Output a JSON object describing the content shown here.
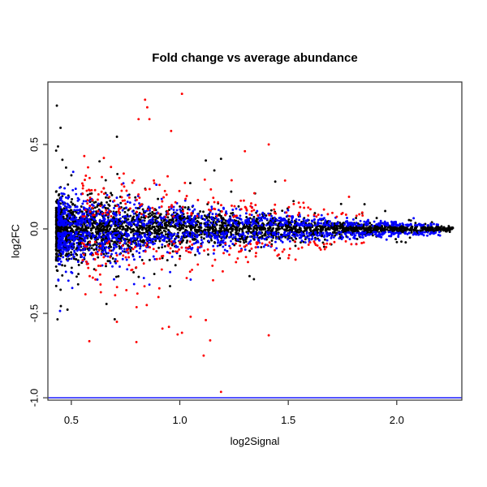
{
  "chart_data": {
    "type": "scatter",
    "title": "Fold change vs average abundance",
    "xlabel": "log2Signal",
    "ylabel": "log2FC",
    "x_ticks": [
      0.5,
      1.0,
      1.5,
      2.0
    ],
    "x_tick_labels": [
      "0.5",
      "1.0",
      "1.5",
      "2.0"
    ],
    "y_ticks": [
      -1.0,
      -0.5,
      0.0,
      0.5
    ],
    "y_tick_labels": [
      "-1.0",
      "-0.5",
      "0.0",
      "0.5"
    ],
    "xlim": [
      0.392,
      2.3
    ],
    "ylim": [
      -1.014,
      0.87
    ],
    "grid": false,
    "legend": null,
    "background_color": "#ffffff",
    "axis_color": "#2f2f2f",
    "hline": {
      "y": -1.0,
      "color": "#0000ff"
    },
    "seed": 1337,
    "series": [
      {
        "name": "black-points",
        "color": "#000000",
        "count": 2800,
        "x_min": 0.43,
        "x_max": 2.26,
        "x_pow": 1.8,
        "offset": 0.0,
        "sd_scale": 0.075,
        "sd_pow": 1.35,
        "sd_min": 0.006,
        "tail_frac": 0.07,
        "tail_mult": 3.0,
        "outliers": [
          [
            0.7,
            -0.535
          ],
          [
            1.12,
            0.405
          ],
          [
            1.19,
            0.415
          ],
          [
            1.44,
            0.28
          ],
          [
            0.63,
            0.4
          ],
          [
            2.24,
            -0.005
          ]
        ]
      },
      {
        "name": "blue-points",
        "color": "#0000ff",
        "count": 1500,
        "x_min": 0.44,
        "x_max": 2.2,
        "x_pow": 1.8,
        "offset": 0.018,
        "sd_scale": 0.085,
        "sd_pow": 1.3,
        "sd_min": 0.006,
        "tail_frac": 0.05,
        "tail_mult": 1.8,
        "outliers": [
          [
            0.62,
            -0.3
          ],
          [
            0.86,
            -0.33
          ],
          [
            1.05,
            -0.3
          ],
          [
            0.74,
            0.27
          ]
        ]
      },
      {
        "name": "red-points",
        "color": "#ff0000",
        "count": 340,
        "x_min": 0.55,
        "x_max": 1.85,
        "x_pow": 1.5,
        "offset": 0.07,
        "sd_scale": 0.15,
        "sd_pow": 1.2,
        "sd_min": 0.012,
        "tail_frac": 0.08,
        "tail_mult": 1.8,
        "outliers": [
          [
            0.84,
            0.765
          ],
          [
            1.01,
            0.8
          ],
          [
            0.85,
            0.72
          ],
          [
            0.81,
            0.65
          ],
          [
            0.86,
            0.65
          ],
          [
            0.96,
            0.58
          ],
          [
            1.41,
            0.5
          ],
          [
            1.3,
            0.46
          ],
          [
            1.19,
            -0.965
          ],
          [
            1.11,
            -0.75
          ],
          [
            0.8,
            -0.67
          ],
          [
            1.14,
            -0.66
          ],
          [
            1.41,
            -0.63
          ],
          [
            0.99,
            -0.625
          ],
          [
            1.01,
            -0.615
          ],
          [
            0.95,
            -0.58
          ],
          [
            0.92,
            -0.59
          ],
          [
            1.05,
            -0.52
          ],
          [
            1.12,
            -0.54
          ],
          [
            0.71,
            -0.55
          ],
          [
            1.78,
            0.19
          ],
          [
            1.57,
            0.155
          ],
          [
            0.65,
            0.42
          ]
        ]
      }
    ]
  }
}
